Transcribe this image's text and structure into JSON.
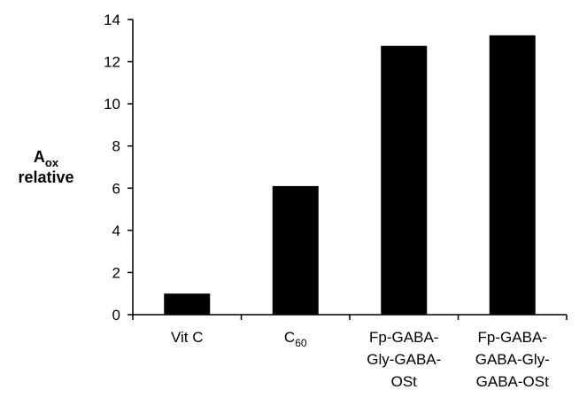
{
  "chart_data": {
    "type": "bar",
    "title": "",
    "xlabel": "",
    "ylabel_main": "A",
    "ylabel_sub": "ox",
    "ylabel_line2": "relative",
    "ylim": [
      0,
      14
    ],
    "yticks": [
      0,
      2,
      4,
      6,
      8,
      10,
      12,
      14
    ],
    "grid": false,
    "legend": "none",
    "bar_color": "#000000",
    "categories": [
      {
        "lines": [
          {
            "main": "Vit C",
            "sub": ""
          }
        ]
      },
      {
        "lines": [
          {
            "main": "C",
            "sub": "60"
          }
        ]
      },
      {
        "lines": [
          {
            "main": "Fp-GABA-",
            "sub": ""
          },
          {
            "main": "Gly-GABA-",
            "sub": ""
          },
          {
            "main": "OSt",
            "sub": ""
          }
        ]
      },
      {
        "lines": [
          {
            "main": "Fp-GABA-",
            "sub": ""
          },
          {
            "main": "GABA-Gly-",
            "sub": ""
          },
          {
            "main": "GABA-OSt",
            "sub": ""
          }
        ]
      }
    ],
    "values": [
      1.0,
      6.1,
      12.75,
      13.25
    ]
  }
}
